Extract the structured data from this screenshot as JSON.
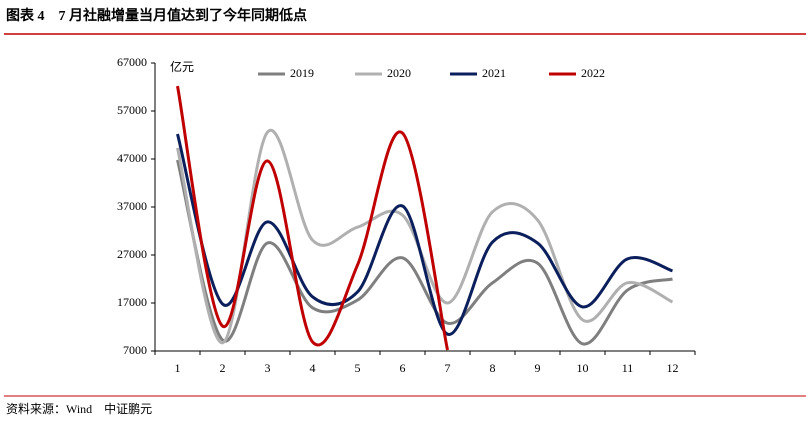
{
  "header": {
    "title": "图表 4　7 月社融增量当月值达到了今年同期低点"
  },
  "chart_data": {
    "type": "line",
    "y_label": "亿元",
    "categories": [
      "1",
      "2",
      "3",
      "4",
      "5",
      "6",
      "7",
      "8",
      "9",
      "10",
      "11",
      "12"
    ],
    "ylim": [
      7000,
      67000
    ],
    "yticks": [
      7000,
      17000,
      27000,
      37000,
      47000,
      57000,
      67000
    ],
    "smooth": true,
    "legend": "top",
    "series": [
      {
        "name": "2019",
        "color": "#7f7f7f",
        "values": [
          46800,
          9300,
          29500,
          16000,
          17600,
          26400,
          12800,
          21200,
          25300,
          8500,
          19700,
          22000
        ]
      },
      {
        "name": "2020",
        "color": "#b0b0b0",
        "values": [
          49300,
          8700,
          52600,
          30100,
          32800,
          35300,
          17000,
          36000,
          34300,
          13500,
          21200,
          17200
        ]
      },
      {
        "name": "2021",
        "color": "#0b1f5c",
        "values": [
          52200,
          16800,
          33900,
          18300,
          19300,
          37200,
          10500,
          29700,
          29500,
          16200,
          26200,
          23700
        ]
      },
      {
        "name": "2022",
        "color": "#c00000",
        "values": [
          62200,
          12200,
          46600,
          8900,
          24900,
          52400,
          7200,
          null,
          null,
          null,
          null,
          null
        ]
      }
    ]
  },
  "footer": {
    "source": "资料来源：Wind　中证鹏元"
  }
}
